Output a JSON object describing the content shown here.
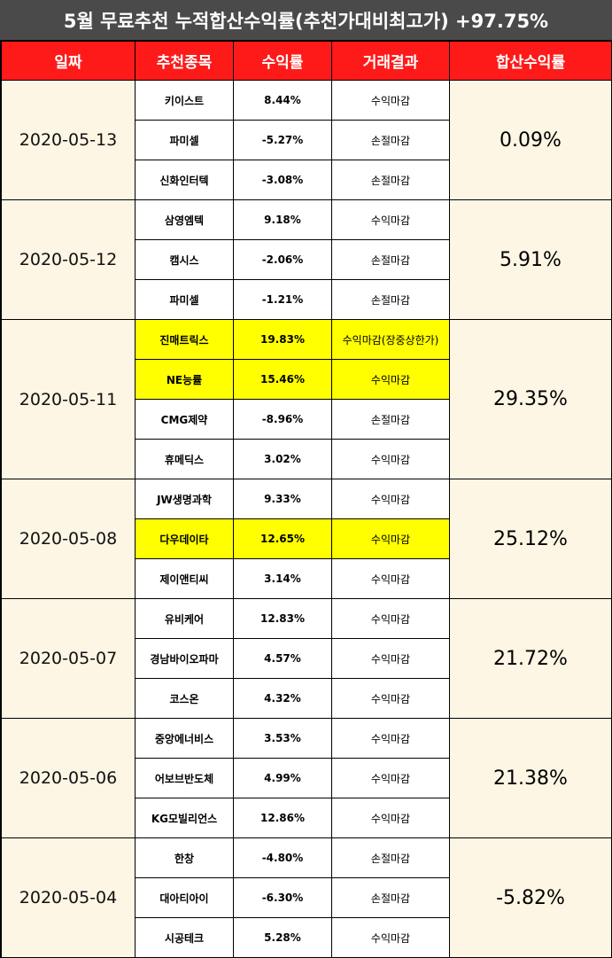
{
  "title": "5월 무료추천 누적합산수익률(추천가대비최고가) +97.75%",
  "headers": [
    "일짜",
    "추천종목",
    "수익률",
    "거래결과",
    "합산수익률"
  ],
  "colors": {
    "positive": "#e00000",
    "negative": "#4a86c0",
    "header_bg": "#ff1a1a",
    "highlight": "#ffff00",
    "date_bg": "#fdf6e4"
  },
  "groups": [
    {
      "date": "2020-05-13",
      "total": "0.09%",
      "total_sign": "pos",
      "rows": [
        {
          "stock": "키이스트",
          "yield": "8.44%",
          "sign": "pos",
          "result": "수익마감",
          "highlight": false
        },
        {
          "stock": "파미셀",
          "yield": "-5.27%",
          "sign": "neg",
          "result": "손절마감",
          "highlight": false
        },
        {
          "stock": "신화인터텍",
          "yield": "-3.08%",
          "sign": "neg",
          "result": "손절마감",
          "highlight": false
        }
      ]
    },
    {
      "date": "2020-05-12",
      "total": "5.91%",
      "total_sign": "pos",
      "rows": [
        {
          "stock": "삼영엠텍",
          "yield": "9.18%",
          "sign": "pos",
          "result": "수익마감",
          "highlight": false
        },
        {
          "stock": "캠시스",
          "yield": "-2.06%",
          "sign": "neg",
          "result": "손절마감",
          "highlight": false
        },
        {
          "stock": "파미셀",
          "yield": "-1.21%",
          "sign": "neg",
          "result": "손절마감",
          "highlight": false
        }
      ]
    },
    {
      "date": "2020-05-11",
      "total": "29.35%",
      "total_sign": "pos",
      "rows": [
        {
          "stock": "진매트릭스",
          "yield": "19.83%",
          "sign": "pos",
          "result": "수익마감(장중상한가)",
          "highlight": true,
          "result_red": true
        },
        {
          "stock": "NE능률",
          "yield": "15.46%",
          "sign": "pos",
          "result": "수익마감",
          "highlight": true
        },
        {
          "stock": "CMG제약",
          "yield": "-8.96%",
          "sign": "neg",
          "result": "손절마감",
          "highlight": false
        },
        {
          "stock": "휴메딕스",
          "yield": "3.02%",
          "sign": "pos",
          "result": "수익마감",
          "highlight": false
        }
      ]
    },
    {
      "date": "2020-05-08",
      "total": "25.12%",
      "total_sign": "pos",
      "rows": [
        {
          "stock": "JW생명과학",
          "yield": "9.33%",
          "sign": "pos",
          "result": "수익마감",
          "highlight": false
        },
        {
          "stock": "다우데이타",
          "yield": "12.65%",
          "sign": "pos",
          "result": "수익마감",
          "highlight": true
        },
        {
          "stock": "제이앤티씨",
          "yield": "3.14%",
          "sign": "pos",
          "result": "수익마감",
          "highlight": false
        }
      ]
    },
    {
      "date": "2020-05-07",
      "total": "21.72%",
      "total_sign": "pos",
      "rows": [
        {
          "stock": "유비케어",
          "yield": "12.83%",
          "sign": "pos",
          "result": "수익마감",
          "highlight": false
        },
        {
          "stock": "경남바이오파마",
          "yield": "4.57%",
          "sign": "pos",
          "result": "수익마감",
          "highlight": false
        },
        {
          "stock": "코스온",
          "yield": "4.32%",
          "sign": "pos",
          "result": "수익마감",
          "highlight": false
        }
      ]
    },
    {
      "date": "2020-05-06",
      "total": "21.38%",
      "total_sign": "pos",
      "rows": [
        {
          "stock": "중앙에너비스",
          "yield": "3.53%",
          "sign": "pos",
          "result": "수익마감",
          "highlight": false
        },
        {
          "stock": "어보브반도체",
          "yield": "4.99%",
          "sign": "pos",
          "result": "수익마감",
          "highlight": false
        },
        {
          "stock": "KG모빌리언스",
          "yield": "12.86%",
          "sign": "pos",
          "result": "수익마감",
          "highlight": false
        }
      ]
    },
    {
      "date": "2020-05-04",
      "total": "-5.82%",
      "total_sign": "neg",
      "rows": [
        {
          "stock": "한창",
          "yield": "-4.80%",
          "sign": "neg",
          "result": "손절마감",
          "highlight": false
        },
        {
          "stock": "대아티아이",
          "yield": "-6.30%",
          "sign": "neg",
          "result": "손절마감",
          "highlight": false
        },
        {
          "stock": "시공테크",
          "yield": "5.28%",
          "sign": "pos",
          "result": "수익마감",
          "highlight": false
        }
      ]
    }
  ]
}
